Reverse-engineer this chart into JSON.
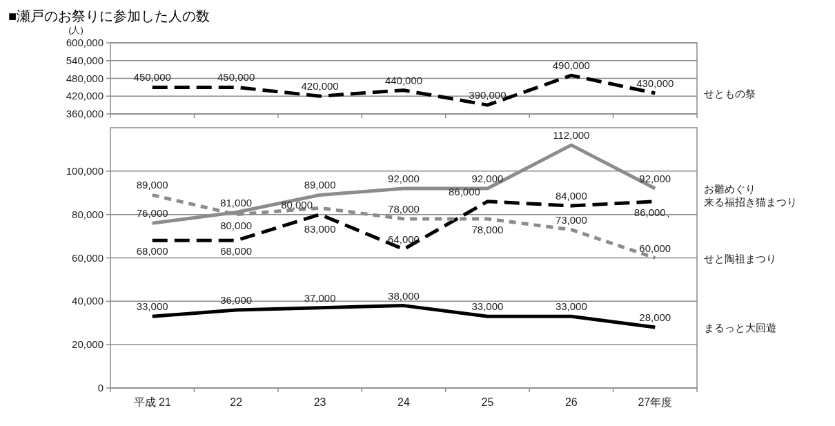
{
  "chart_data": [
    {
      "type": "line",
      "title": "■瀬戸のお祭りに参加した人の数",
      "ylabel": "(人)",
      "categories": [
        null,
        null,
        null,
        null,
        null,
        null,
        null
      ],
      "ylim": [
        360000,
        600000
      ],
      "yticks": [
        {
          "value": 360000,
          "label": "360,000"
        },
        {
          "value": 420000,
          "label": "420,000"
        },
        {
          "value": 480000,
          "label": "480,000"
        },
        {
          "value": 540000,
          "label": "540,000"
        },
        {
          "value": 600000,
          "label": "600,000"
        }
      ],
      "grid": "y",
      "tick_labels": "y",
      "data_labels": true,
      "series": [
        {
          "name": "せともの祭",
          "color": "#000000",
          "line_style": "dashed",
          "values": [
            450000,
            450000,
            420000,
            440000,
            390000,
            490000,
            430000
          ],
          "value_labels": [
            "450,000",
            "450,000",
            "420,000",
            "440,000",
            "390,000",
            "490,000",
            "430,000"
          ]
        }
      ]
    },
    {
      "type": "line",
      "categories": [
        "平成 21",
        "22",
        "23",
        "24",
        "25",
        "26",
        "27年度"
      ],
      "ylim": [
        0,
        120000
      ],
      "yticks": [
        {
          "value": 0,
          "label": "0"
        },
        {
          "value": 20000,
          "label": "20,000"
        },
        {
          "value": 40000,
          "label": "40,000"
        },
        {
          "value": 60000,
          "label": "60,000"
        },
        {
          "value": 80000,
          "label": "80,000"
        },
        {
          "value": 100000,
          "label": "100,000"
        }
      ],
      "grid": "y",
      "data_labels": true,
      "series": [
        {
          "name": "お雛めぐり",
          "color": "#8c8c8c",
          "line_style": "solid",
          "values": [
            76000,
            81000,
            89000,
            92000,
            92000,
            112000,
            92000
          ],
          "value_labels": [
            "76,000",
            "81,000",
            "89,000",
            "92,000",
            "92,000",
            "112,000",
            "92,000"
          ]
        },
        {
          "name": "来る福招き猫まつり",
          "color": "#000000",
          "line_style": "dashed",
          "values": [
            68000,
            68000,
            80000,
            64000,
            86000,
            84000,
            86000
          ],
          "value_labels": [
            "68,000",
            "68,000",
            "80,000",
            "64,000",
            "86,000",
            "84,000",
            "86,000、"
          ]
        },
        {
          "name": "せと陶祖まつり",
          "color": "#8c8c8c",
          "line_style": "dotted",
          "values": [
            89000,
            80000,
            83000,
            78000,
            78000,
            73000,
            60000
          ],
          "value_labels": [
            "89,000",
            "80,000",
            "83,000",
            "78,000",
            "78,000",
            "73,000",
            "60,000"
          ]
        },
        {
          "name": "まるっと大回遊",
          "color": "#000000",
          "line_style": "solid",
          "values": [
            33000,
            36000,
            37000,
            38000,
            33000,
            33000,
            28000
          ],
          "value_labels": [
            "33,000",
            "36,000",
            "37,000",
            "38,000",
            "33,000",
            "33,000",
            "28,000"
          ]
        }
      ]
    }
  ]
}
